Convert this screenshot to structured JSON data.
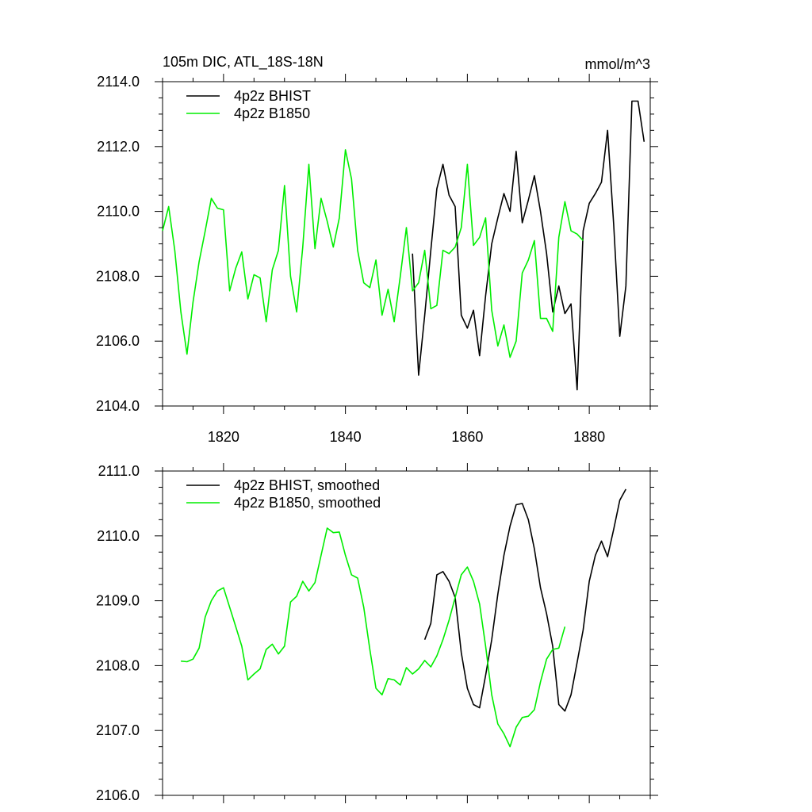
{
  "title_left": "105m DIC, ATL_18S-18N",
  "title_right": "mmol/m^3",
  "colors": {
    "hist": "#000000",
    "b1850": "#00ee00",
    "axis": "#000000"
  },
  "chart_data": [
    {
      "type": "line",
      "xlim": [
        1810,
        1890
      ],
      "ylim": [
        2104,
        2114
      ],
      "yticks": [
        "2104.0",
        "2106.0",
        "2108.0",
        "2110.0",
        "2112.0",
        "2114.0"
      ],
      "xticks": [
        "1820",
        "1840",
        "1860",
        "1880"
      ],
      "legend_position": "top-left",
      "series": [
        {
          "name": "4p2z BHIST",
          "color": "#000000",
          "x": [
            1851,
            1852,
            1853,
            1854,
            1855,
            1856,
            1857,
            1858,
            1859,
            1860,
            1861,
            1862,
            1863,
            1864,
            1865,
            1866,
            1867,
            1868,
            1869,
            1870,
            1871,
            1872,
            1873,
            1874,
            1875,
            1876,
            1877,
            1878,
            1879,
            1880,
            1881,
            1882,
            1883,
            1884,
            1885,
            1886,
            1887,
            1888,
            1889
          ],
          "y": [
            2108.7,
            2104.95,
            2106.8,
            2108.8,
            2110.7,
            2111.45,
            2110.5,
            2110.15,
            2106.8,
            2106.4,
            2106.95,
            2105.55,
            2107.4,
            2109.0,
            2109.8,
            2110.55,
            2110.0,
            2111.85,
            2109.65,
            2110.35,
            2111.1,
            2110.0,
            2108.7,
            2106.9,
            2107.7,
            2106.85,
            2107.15,
            2104.5,
            2109.4,
            2110.25,
            2110.55,
            2110.9,
            2112.5,
            2109.6,
            2106.15,
            2107.7,
            2113.4,
            2113.4,
            2112.15
          ]
        },
        {
          "name": "4p2z B1850",
          "color": "#00ee00",
          "x": [
            1810,
            1811,
            1812,
            1813,
            1814,
            1815,
            1816,
            1817,
            1818,
            1819,
            1820,
            1821,
            1822,
            1823,
            1824,
            1825,
            1826,
            1827,
            1828,
            1829,
            1830,
            1831,
            1832,
            1833,
            1834,
            1835,
            1836,
            1837,
            1838,
            1839,
            1840,
            1841,
            1842,
            1843,
            1844,
            1845,
            1846,
            1847,
            1848,
            1849,
            1850,
            1851,
            1852,
            1853,
            1854,
            1855,
            1856,
            1857,
            1858,
            1859,
            1860,
            1861,
            1862,
            1863,
            1864,
            1865,
            1866,
            1867,
            1868,
            1869,
            1870,
            1871,
            1872,
            1873,
            1874,
            1875,
            1876,
            1877,
            1878,
            1879
          ],
          "y": [
            2109.4,
            2110.15,
            2108.8,
            2106.9,
            2105.6,
            2107.2,
            2108.45,
            2109.4,
            2110.4,
            2110.1,
            2110.05,
            2107.55,
            2108.25,
            2108.75,
            2107.3,
            2108.05,
            2107.95,
            2106.6,
            2108.2,
            2108.8,
            2110.8,
            2108.0,
            2106.9,
            2108.9,
            2111.45,
            2108.85,
            2110.4,
            2109.7,
            2108.9,
            2109.8,
            2111.9,
            2111.0,
            2108.8,
            2107.8,
            2107.65,
            2108.5,
            2106.8,
            2107.6,
            2106.6,
            2108.0,
            2109.5,
            2107.55,
            2107.8,
            2108.8,
            2107.0,
            2107.1,
            2108.8,
            2108.7,
            2108.9,
            2109.5,
            2111.45,
            2108.95,
            2109.2,
            2109.8,
            2106.95,
            2105.85,
            2106.5,
            2105.5,
            2106.0,
            2108.1,
            2108.5,
            2109.1,
            2106.7,
            2106.7,
            2106.3,
            2109.2,
            2110.3,
            2109.4,
            2109.3,
            2109.1
          ]
        }
      ]
    },
    {
      "type": "line",
      "xlim": [
        1810,
        1890
      ],
      "ylim": [
        2106,
        2111
      ],
      "yticks": [
        "2106.0",
        "2107.0",
        "2108.0",
        "2109.0",
        "2110.0",
        "2111.0"
      ],
      "xticks": [
        "1820",
        "1840",
        "1860",
        "1880"
      ],
      "legend_position": "top-left",
      "series": [
        {
          "name": "4p2z BHIST, smoothed",
          "color": "#000000",
          "x": [
            1853,
            1854,
            1855,
            1856,
            1857,
            1858,
            1859,
            1860,
            1861,
            1862,
            1863,
            1864,
            1865,
            1866,
            1867,
            1868,
            1869,
            1870,
            1871,
            1872,
            1873,
            1874,
            1875,
            1876,
            1877,
            1878,
            1879,
            1880,
            1881,
            1882,
            1883,
            1884,
            1885,
            1886
          ],
          "y": [
            2108.4,
            2108.65,
            2109.4,
            2109.45,
            2109.3,
            2109.05,
            2108.2,
            2107.65,
            2107.4,
            2107.35,
            2107.85,
            2108.4,
            2109.1,
            2109.7,
            2110.15,
            2110.48,
            2110.5,
            2110.25,
            2109.8,
            2109.2,
            2108.8,
            2108.3,
            2107.4,
            2107.3,
            2107.55,
            2108.05,
            2108.55,
            2109.3,
            2109.7,
            2109.92,
            2109.68,
            2110.1,
            2110.55,
            2110.72
          ]
        },
        {
          "name": "4p2z B1850, smoothed",
          "color": "#00ee00",
          "x": [
            1813,
            1814,
            1815,
            1816,
            1817,
            1818,
            1819,
            1820,
            1821,
            1822,
            1823,
            1824,
            1825,
            1826,
            1827,
            1828,
            1829,
            1830,
            1831,
            1832,
            1833,
            1834,
            1835,
            1836,
            1837,
            1838,
            1839,
            1840,
            1841,
            1842,
            1843,
            1844,
            1845,
            1846,
            1847,
            1848,
            1849,
            1850,
            1851,
            1852,
            1853,
            1854,
            1855,
            1856,
            1857,
            1858,
            1859,
            1860,
            1861,
            1862,
            1863,
            1864,
            1865,
            1866,
            1867,
            1868,
            1869,
            1870,
            1871,
            1872,
            1873,
            1874,
            1875,
            1876
          ],
          "y": [
            2108.07,
            2108.06,
            2108.1,
            2108.27,
            2108.75,
            2109.0,
            2109.15,
            2109.2,
            2108.9,
            2108.6,
            2108.3,
            2107.78,
            2107.87,
            2107.95,
            2108.25,
            2108.33,
            2108.18,
            2108.3,
            2108.98,
            2109.07,
            2109.3,
            2109.15,
            2109.28,
            2109.7,
            2110.12,
            2110.05,
            2110.06,
            2109.7,
            2109.4,
            2109.35,
            2108.9,
            2108.25,
            2107.65,
            2107.55,
            2107.8,
            2107.78,
            2107.7,
            2107.97,
            2107.87,
            2107.95,
            2108.08,
            2107.98,
            2108.15,
            2108.4,
            2108.7,
            2109.05,
            2109.4,
            2109.52,
            2109.3,
            2108.95,
            2108.3,
            2107.55,
            2107.1,
            2106.95,
            2106.75,
            2107.05,
            2107.2,
            2107.22,
            2107.32,
            2107.75,
            2108.1,
            2108.25,
            2108.27,
            2108.6
          ]
        }
      ]
    }
  ]
}
